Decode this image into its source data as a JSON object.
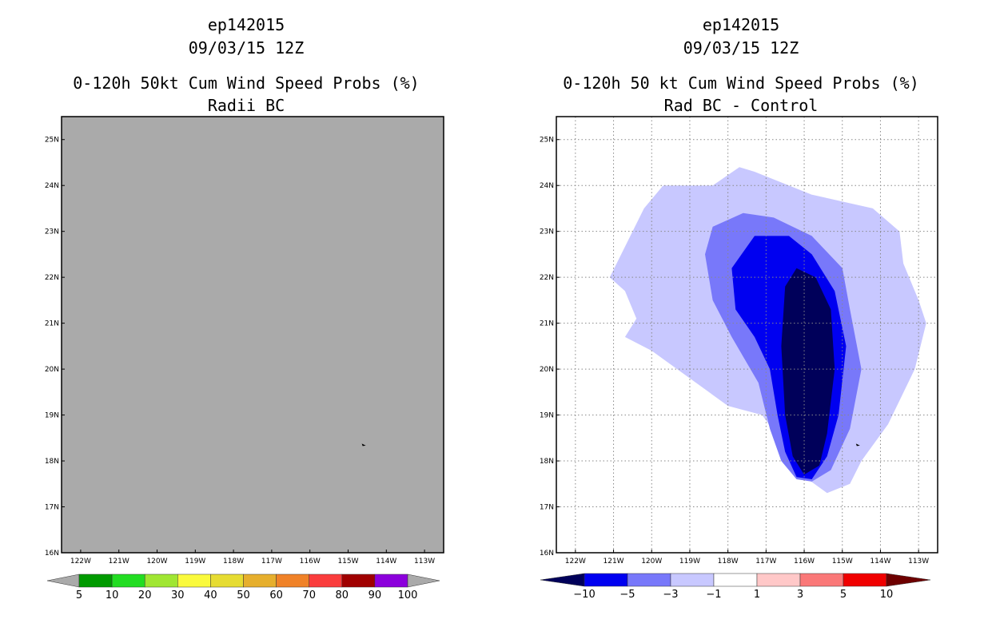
{
  "chart_data": [
    {
      "type": "heatmap",
      "panel": "left",
      "title_lines": [
        "ep142015",
        "09/03/15 12Z",
        "0-120h 50kt Cum Wind Speed Probs (%)",
        "Radii BC"
      ],
      "x_ticks": [
        "122W",
        "121W",
        "120W",
        "119W",
        "118W",
        "117W",
        "116W",
        "115W",
        "114W",
        "113W"
      ],
      "y_ticks": [
        "16N",
        "17N",
        "18N",
        "19N",
        "20N",
        "21N",
        "22N",
        "23N",
        "24N",
        "25N"
      ],
      "xlim": [
        -122.5,
        -112.5
      ],
      "ylim": [
        16,
        25.5
      ],
      "grid": false,
      "field_color": "#aaaaaa",
      "storm_marker": {
        "lon": -114.6,
        "lat": 18.35
      },
      "colorbar": {
        "labels": [
          "5",
          "10",
          "20",
          "30",
          "40",
          "50",
          "60",
          "70",
          "80",
          "90",
          "100"
        ],
        "colors": [
          "#009a00",
          "#22dd22",
          "#a0e632",
          "#fafa3c",
          "#e6dc32",
          "#e6af2d",
          "#f08228",
          "#fa3c3c",
          "#a00000",
          "#8c00dc"
        ],
        "end_color": "#aaaaaa"
      }
    },
    {
      "type": "heatmap",
      "panel": "right",
      "title_lines": [
        "ep142015",
        "09/03/15 12Z",
        "0-120h 50 kt Cum Wind Speed Probs (%)",
        "Rad BC - Control"
      ],
      "x_ticks": [
        "122W",
        "121W",
        "120W",
        "119W",
        "118W",
        "117W",
        "116W",
        "115W",
        "114W",
        "113W"
      ],
      "y_ticks": [
        "16N",
        "17N",
        "18N",
        "19N",
        "20N",
        "21N",
        "22N",
        "23N",
        "24N",
        "25N"
      ],
      "xlim": [
        -122.5,
        -112.5
      ],
      "ylim": [
        16,
        25.5
      ],
      "grid": true,
      "storm_marker": {
        "lon": -114.6,
        "lat": 18.35
      },
      "contours": [
        {
          "level": "-1 to -3",
          "color": "#c8c8ff",
          "polygon": [
            [
              -121.1,
              22.0
            ],
            [
              -120.2,
              23.5
            ],
            [
              -119.7,
              24.0
            ],
            [
              -118.4,
              24.0
            ],
            [
              -117.7,
              24.4
            ],
            [
              -117.3,
              24.3
            ],
            [
              -115.8,
              23.8
            ],
            [
              -114.2,
              23.5
            ],
            [
              -113.5,
              23.0
            ],
            [
              -113.4,
              22.3
            ],
            [
              -113.0,
              21.5
            ],
            [
              -112.8,
              21.0
            ],
            [
              -113.1,
              20.0
            ],
            [
              -113.8,
              18.8
            ],
            [
              -114.5,
              18.0
            ],
            [
              -114.8,
              17.5
            ],
            [
              -115.4,
              17.3
            ],
            [
              -115.9,
              17.6
            ],
            [
              -116.6,
              18.4
            ],
            [
              -117.1,
              19.0
            ],
            [
              -118.0,
              19.2
            ],
            [
              -119.0,
              19.8
            ],
            [
              -120.0,
              20.4
            ],
            [
              -120.7,
              20.7
            ],
            [
              -120.4,
              21.1
            ],
            [
              -120.7,
              21.7
            ]
          ]
        },
        {
          "level": "-3 to -5",
          "color": "#7878fa",
          "polygon": [
            [
              -118.6,
              22.5
            ],
            [
              -118.4,
              23.1
            ],
            [
              -117.6,
              23.4
            ],
            [
              -116.8,
              23.3
            ],
            [
              -115.8,
              22.9
            ],
            [
              -115.0,
              22.2
            ],
            [
              -114.8,
              21.3
            ],
            [
              -114.5,
              20.0
            ],
            [
              -114.8,
              18.7
            ],
            [
              -115.3,
              17.8
            ],
            [
              -115.8,
              17.55
            ],
            [
              -116.2,
              17.6
            ],
            [
              -116.6,
              18.0
            ],
            [
              -116.9,
              18.7
            ],
            [
              -117.2,
              19.7
            ],
            [
              -117.9,
              20.7
            ],
            [
              -118.4,
              21.5
            ]
          ]
        },
        {
          "level": "-5 to -10",
          "color": "#0000f0",
          "polygon": [
            [
              -117.9,
              22.2
            ],
            [
              -117.3,
              22.9
            ],
            [
              -116.4,
              22.9
            ],
            [
              -115.8,
              22.5
            ],
            [
              -115.2,
              21.7
            ],
            [
              -114.9,
              20.5
            ],
            [
              -115.1,
              19.0
            ],
            [
              -115.4,
              18.1
            ],
            [
              -115.8,
              17.6
            ],
            [
              -116.2,
              17.65
            ],
            [
              -116.5,
              18.2
            ],
            [
              -116.7,
              19.0
            ],
            [
              -116.9,
              20.0
            ],
            [
              -117.3,
              20.7
            ],
            [
              -117.8,
              21.3
            ]
          ]
        },
        {
          "level": "< -10",
          "color": "#00005a",
          "polygon": [
            [
              -116.5,
              21.8
            ],
            [
              -116.2,
              22.2
            ],
            [
              -115.7,
              22.0
            ],
            [
              -115.3,
              21.3
            ],
            [
              -115.2,
              20.0
            ],
            [
              -115.4,
              18.6
            ],
            [
              -115.6,
              17.9
            ],
            [
              -116.0,
              17.7
            ],
            [
              -116.3,
              18.1
            ],
            [
              -116.5,
              19.0
            ],
            [
              -116.6,
              20.5
            ]
          ]
        }
      ],
      "colorbar": {
        "labels": [
          "-10",
          "-5",
          "-3",
          "-1",
          "1",
          "3",
          "5",
          "10"
        ],
        "colors": [
          "#0000f0",
          "#7878fa",
          "#c8c8ff",
          "#ffffff",
          "#ffc8c8",
          "#fa7878",
          "#f00000"
        ],
        "low_end_color": "#00005a",
        "high_end_color": "#6e0000"
      }
    }
  ]
}
